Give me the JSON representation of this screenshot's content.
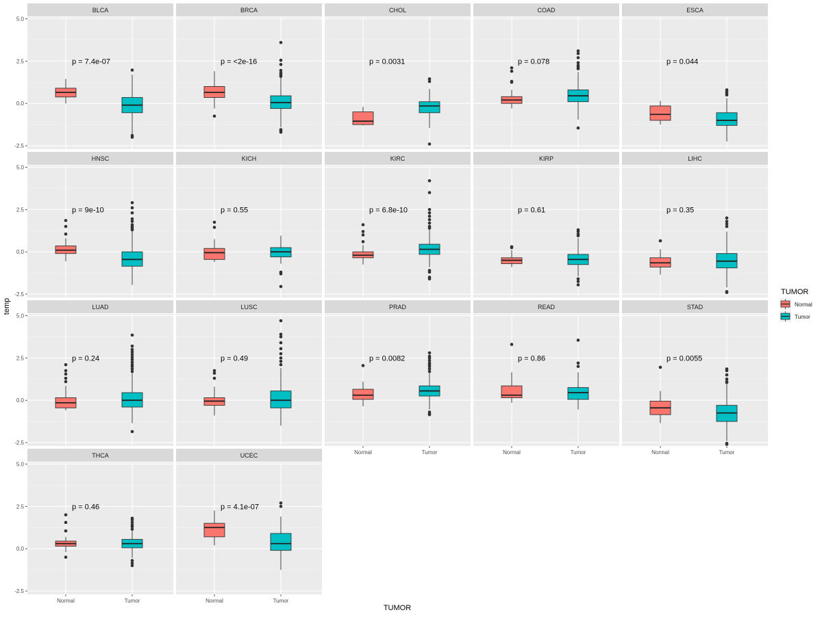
{
  "chart_data": {
    "type": "boxplot",
    "facet_layout": "wrap 5 columns",
    "xlabel": "TUMOR",
    "ylabel": "temp",
    "categories": [
      "Normal",
      "Tumor"
    ],
    "ylim": [
      -2.7,
      5.1
    ],
    "y_ticks": [
      {
        "value": -2.5,
        "label": "-2.5"
      },
      {
        "value": 0,
        "label": "0.0"
      },
      {
        "value": 2.5,
        "label": "2.5"
      },
      {
        "value": 5,
        "label": "5.0"
      }
    ],
    "legend": {
      "title": "TUMOR",
      "position": "right",
      "entries": [
        {
          "label": "Normal",
          "color": "#F8766D"
        },
        {
          "label": "Tumor",
          "color": "#00BFC4"
        }
      ]
    },
    "panel_background": "#EBEBEB",
    "strip_background": "#D9D9D9",
    "panels": [
      {
        "name": "BLCA",
        "p_label": "p = 7.4e-07",
        "normal": {
          "q1": 0.38,
          "median": 0.65,
          "q3": 0.9,
          "lo": 0.0,
          "hi": 1.45,
          "outliers": []
        },
        "tumor": {
          "q1": -0.55,
          "median": -0.1,
          "q3": 0.35,
          "lo": -1.85,
          "hi": 1.7,
          "outliers": [
            1.97,
            -1.9,
            -2.0
          ]
        }
      },
      {
        "name": "BRCA",
        "p_label": "p = <2e-16",
        "normal": {
          "q1": 0.35,
          "median": 0.65,
          "q3": 1.0,
          "lo": -0.3,
          "hi": 1.9,
          "outliers": [
            -0.75
          ]
        },
        "tumor": {
          "q1": -0.3,
          "median": 0.05,
          "q3": 0.45,
          "lo": -1.4,
          "hi": 1.55,
          "outliers": [
            1.6,
            1.7,
            1.8,
            1.95,
            2.3,
            2.55,
            3.6,
            -1.55,
            -1.62,
            -1.7
          ]
        }
      },
      {
        "name": "CHOL",
        "p_label": "p = 0.0031",
        "normal": {
          "q1": -1.25,
          "median": -1.05,
          "q3": -0.5,
          "lo": -1.3,
          "hi": -0.2,
          "outliers": []
        },
        "tumor": {
          "q1": -0.55,
          "median": -0.15,
          "q3": 0.1,
          "lo": -1.45,
          "hi": 0.85,
          "outliers": [
            1.3,
            1.45,
            -2.4
          ]
        }
      },
      {
        "name": "COAD",
        "p_label": "p = 0.078",
        "normal": {
          "q1": 0.0,
          "median": 0.2,
          "q3": 0.4,
          "lo": -0.3,
          "hi": 0.8,
          "outliers": [
            1.25,
            1.3,
            1.9,
            2.1
          ]
        },
        "tumor": {
          "q1": 0.1,
          "median": 0.45,
          "q3": 0.8,
          "lo": -0.95,
          "hi": 1.85,
          "outliers": [
            2.05,
            2.15,
            2.25,
            2.4,
            2.7,
            2.95,
            3.1,
            -1.45
          ]
        }
      },
      {
        "name": "ESCA",
        "p_label": "p = 0.044",
        "normal": {
          "q1": -1.0,
          "median": -0.65,
          "q3": -0.15,
          "lo": -1.25,
          "hi": 0.15,
          "outliers": []
        },
        "tumor": {
          "q1": -1.3,
          "median": -1.0,
          "q3": -0.55,
          "lo": -2.25,
          "hi": 0.3,
          "outliers": [
            0.5,
            0.6,
            0.7,
            0.8
          ]
        }
      },
      {
        "name": "HNSC",
        "p_label": "p = 9e-10",
        "normal": {
          "q1": -0.1,
          "median": 0.1,
          "q3": 0.35,
          "lo": -0.55,
          "hi": 0.8,
          "outliers": [
            1.05,
            1.5,
            1.85
          ]
        },
        "tumor": {
          "q1": -0.85,
          "median": -0.45,
          "q3": 0.0,
          "lo": -1.95,
          "hi": 1.2,
          "outliers": [
            1.3,
            1.4,
            1.5,
            1.6,
            1.8,
            1.95,
            2.3,
            2.6,
            2.9
          ]
        }
      },
      {
        "name": "KICH",
        "p_label": "p = 0.55",
        "normal": {
          "q1": -0.45,
          "median": -0.05,
          "q3": 0.2,
          "lo": -0.6,
          "hi": 0.75,
          "outliers": [
            1.45,
            1.75
          ]
        },
        "tumor": {
          "q1": -0.3,
          "median": 0.0,
          "q3": 0.25,
          "lo": -0.7,
          "hi": 0.95,
          "outliers": [
            -1.2,
            -1.3,
            -2.05
          ]
        }
      },
      {
        "name": "KIRC",
        "p_label": "p = 6.8e-10",
        "normal": {
          "q1": -0.35,
          "median": -0.2,
          "q3": 0.0,
          "lo": -0.75,
          "hi": 0.4,
          "outliers": [
            0.6,
            1.0,
            1.2,
            1.6
          ]
        },
        "tumor": {
          "q1": -0.15,
          "median": 0.15,
          "q3": 0.45,
          "lo": -0.9,
          "hi": 1.3,
          "outliers": [
            1.4,
            1.5,
            1.7,
            1.9,
            2.1,
            2.3,
            2.5,
            3.5,
            4.2,
            -1.1,
            -1.2,
            -1.5,
            -1.6
          ]
        }
      },
      {
        "name": "KIRP",
        "p_label": "p = 0.61",
        "normal": {
          "q1": -0.7,
          "median": -0.5,
          "q3": -0.35,
          "lo": -0.9,
          "hi": 0.1,
          "outliers": [
            0.25,
            0.3
          ]
        },
        "tumor": {
          "q1": -0.75,
          "median": -0.45,
          "q3": -0.15,
          "lo": -1.45,
          "hi": 0.8,
          "outliers": [
            0.95,
            1.05,
            1.2,
            1.3,
            -1.6,
            -1.75,
            -1.95
          ]
        }
      },
      {
        "name": "LIHC",
        "p_label": "p = 0.35",
        "normal": {
          "q1": -0.9,
          "median": -0.65,
          "q3": -0.35,
          "lo": -1.35,
          "hi": 0.15,
          "outliers": [
            0.65
          ]
        },
        "tumor": {
          "q1": -0.95,
          "median": -0.55,
          "q3": -0.1,
          "lo": -2.1,
          "hi": 1.2,
          "outliers": [
            1.5,
            1.65,
            1.8,
            2.0,
            -2.35,
            -2.4
          ]
        }
      },
      {
        "name": "LUAD",
        "p_label": "p = 0.24",
        "normal": {
          "q1": -0.45,
          "median": -0.15,
          "q3": 0.15,
          "lo": -0.6,
          "hi": 0.85,
          "outliers": [
            1.1,
            1.3,
            1.55,
            1.75,
            2.1
          ]
        },
        "tumor": {
          "q1": -0.4,
          "median": 0.0,
          "q3": 0.45,
          "lo": -1.35,
          "hi": 1.6,
          "outliers": [
            1.7,
            1.85,
            2.0,
            2.1,
            2.25,
            2.4,
            2.55,
            2.7,
            2.85,
            3.0,
            3.2,
            3.85,
            -1.85
          ]
        }
      },
      {
        "name": "LUSC",
        "p_label": "p = 0.49",
        "normal": {
          "q1": -0.3,
          "median": -0.05,
          "q3": 0.15,
          "lo": -0.9,
          "hi": 0.8,
          "outliers": [
            1.3,
            1.6,
            1.75
          ]
        },
        "tumor": {
          "q1": -0.45,
          "median": 0.0,
          "q3": 0.55,
          "lo": -1.5,
          "hi": 1.9,
          "outliers": [
            2.1,
            2.3,
            2.5,
            2.75,
            3.05,
            3.4,
            3.75,
            3.9,
            4.7
          ]
        }
      },
      {
        "name": "PRAD",
        "p_label": "p = 0.0082",
        "normal": {
          "q1": 0.05,
          "median": 0.3,
          "q3": 0.65,
          "lo": -0.35,
          "hi": 1.1,
          "outliers": [
            2.05
          ]
        },
        "tumor": {
          "q1": 0.25,
          "median": 0.55,
          "q3": 0.85,
          "lo": -0.55,
          "hi": 1.6,
          "outliers": [
            1.7,
            1.85,
            2.0,
            2.1,
            2.2,
            2.35,
            2.5,
            2.6,
            2.8,
            -0.7,
            -0.8,
            -0.85
          ]
        }
      },
      {
        "name": "READ",
        "p_label": "p = 0.86",
        "normal": {
          "q1": 0.15,
          "median": 0.3,
          "q3": 0.85,
          "lo": -0.15,
          "hi": 1.65,
          "outliers": [
            3.3
          ]
        },
        "tumor": {
          "q1": 0.05,
          "median": 0.45,
          "q3": 0.75,
          "lo": -0.55,
          "hi": 1.65,
          "outliers": [
            2.0,
            2.2,
            3.55
          ]
        }
      },
      {
        "name": "STAD",
        "p_label": "p = 0.0055",
        "normal": {
          "q1": -0.85,
          "median": -0.45,
          "q3": -0.05,
          "lo": -1.35,
          "hi": 0.55,
          "outliers": [
            1.95
          ]
        },
        "tumor": {
          "q1": -1.25,
          "median": -0.75,
          "q3": -0.3,
          "lo": -2.4,
          "hi": 0.95,
          "outliers": [
            1.05,
            1.1,
            1.25,
            1.5,
            1.75,
            1.85,
            -2.55,
            -2.6
          ]
        }
      },
      {
        "name": "THCA",
        "p_label": "p = 0.46",
        "normal": {
          "q1": 0.15,
          "median": 0.3,
          "q3": 0.45,
          "lo": -0.2,
          "hi": 0.7,
          "outliers": [
            1.05,
            1.55,
            2.0,
            -0.5
          ]
        },
        "tumor": {
          "q1": 0.05,
          "median": 0.3,
          "q3": 0.55,
          "lo": -0.55,
          "hi": 1.05,
          "outliers": [
            1.15,
            1.3,
            1.4,
            1.55,
            1.7,
            1.8,
            -0.7,
            -0.85,
            -1.0
          ]
        }
      },
      {
        "name": "UCEC",
        "p_label": "p = 4.1e-07",
        "normal": {
          "q1": 0.7,
          "median": 1.25,
          "q3": 1.5,
          "lo": 0.2,
          "hi": 2.25,
          "outliers": []
        },
        "tumor": {
          "q1": -0.1,
          "median": 0.3,
          "q3": 0.9,
          "lo": -1.25,
          "hi": 1.9,
          "outliers": [
            2.5,
            2.7
          ]
        }
      }
    ]
  }
}
